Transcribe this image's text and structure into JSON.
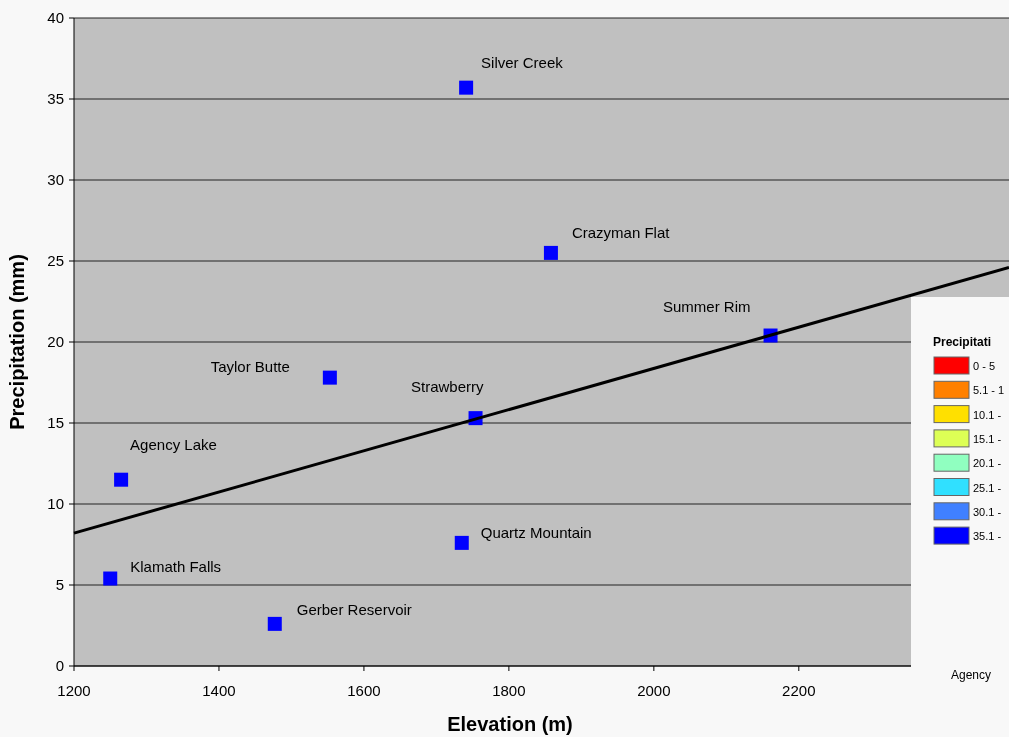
{
  "chart_data": {
    "type": "scatter",
    "xlabel": "Elevation (m)",
    "ylabel": "Precipitation (mm)",
    "xlim": [
      1200,
      2490
    ],
    "xticks": [
      1200,
      1400,
      1600,
      1800,
      2000,
      2200
    ],
    "ylim": [
      0,
      40
    ],
    "yticks": [
      0,
      5,
      10,
      15,
      20,
      25,
      30,
      35,
      40
    ],
    "grid": "y",
    "series": [
      {
        "marker": "square",
        "color": "#0000ff",
        "x": [
          1741,
          1858,
          2161,
          1553,
          1754,
          1265,
          1735,
          1250,
          1477
        ],
        "values": [
          35.7,
          25.5,
          20.4,
          17.8,
          15.3,
          11.5,
          7.6,
          5.4,
          2.6
        ]
      },
      {
        "type": "line",
        "marker": "none",
        "color": "#000000",
        "x": [
          1200,
          2490
        ],
        "values": [
          8.2,
          24.6
        ]
      }
    ],
    "annotations": [
      {
        "text": "Silver Creek",
        "x": 1741,
        "y": 35.7
      },
      {
        "text": "Crazyman Flat",
        "x": 1858,
        "y": 25.5
      },
      {
        "text": "Summer Rim",
        "x": 2161,
        "y": 20.4
      },
      {
        "text": "Taylor Butte",
        "x": 1553,
        "y": 17.8
      },
      {
        "text": "Strawberry",
        "x": 1754,
        "y": 15.3
      },
      {
        "text": "Agency Lake",
        "x": 1265,
        "y": 11.5
      },
      {
        "text": "Quartz Mountain",
        "x": 1735,
        "y": 7.6
      },
      {
        "text": "Klamath Falls",
        "x": 1250,
        "y": 5.4
      },
      {
        "text": "Gerber Reservoir",
        "x": 1477,
        "y": 2.6
      },
      "Precipitati",
      "0 - 5",
      "5.1 - 1",
      "10.1 -",
      "15.1 -",
      "20.1 -",
      "25.1 -",
      "30.1 -",
      "35.1 -",
      "Agency"
    ]
  }
}
